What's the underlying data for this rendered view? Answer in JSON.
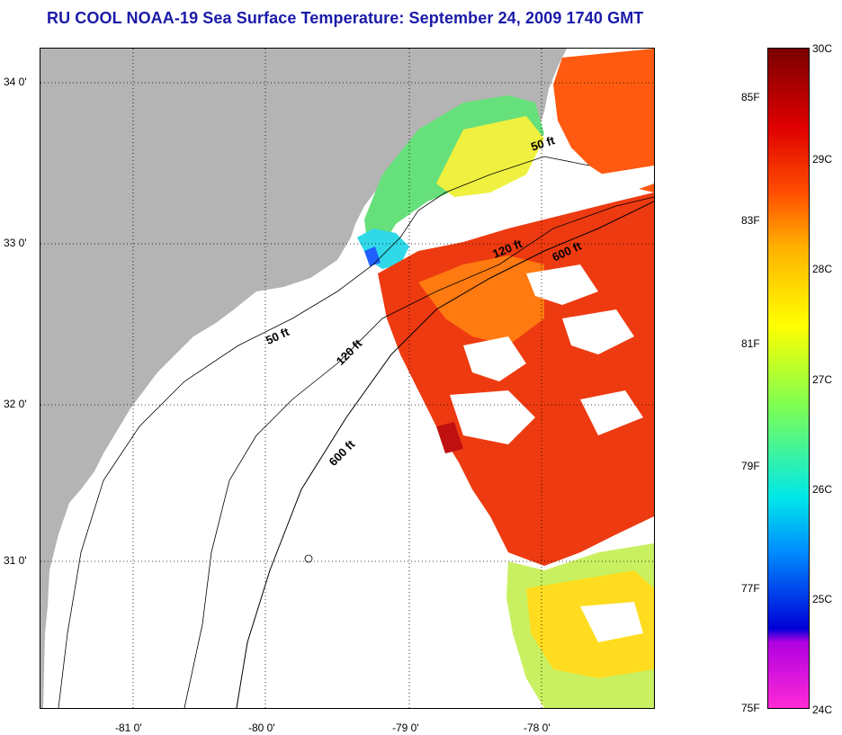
{
  "title": "RU COOL  NOAA-19  Sea Surface Temperature:  September 24, 2009 1740 GMT",
  "map": {
    "lat_labels": [
      "34 0'",
      "33 0'",
      "32 0'",
      "31 0'"
    ],
    "lon_labels": [
      "-81 0'",
      "-80 0'",
      "-79 0'",
      "-78 0'"
    ],
    "isobaths": [
      "50 ft",
      "120 ft",
      "600 ft"
    ],
    "colors": {
      "land": "#b4b4b4",
      "ocean_nodata": "#ffffff",
      "grid": "#000000"
    }
  },
  "colorbar": {
    "fahrenheit": [
      "85F",
      "83F",
      "81F",
      "79F",
      "77F",
      "75F"
    ],
    "celsius": [
      "30C",
      "29C",
      "28C",
      "27C",
      "26C",
      "25C",
      "24C"
    ]
  }
}
